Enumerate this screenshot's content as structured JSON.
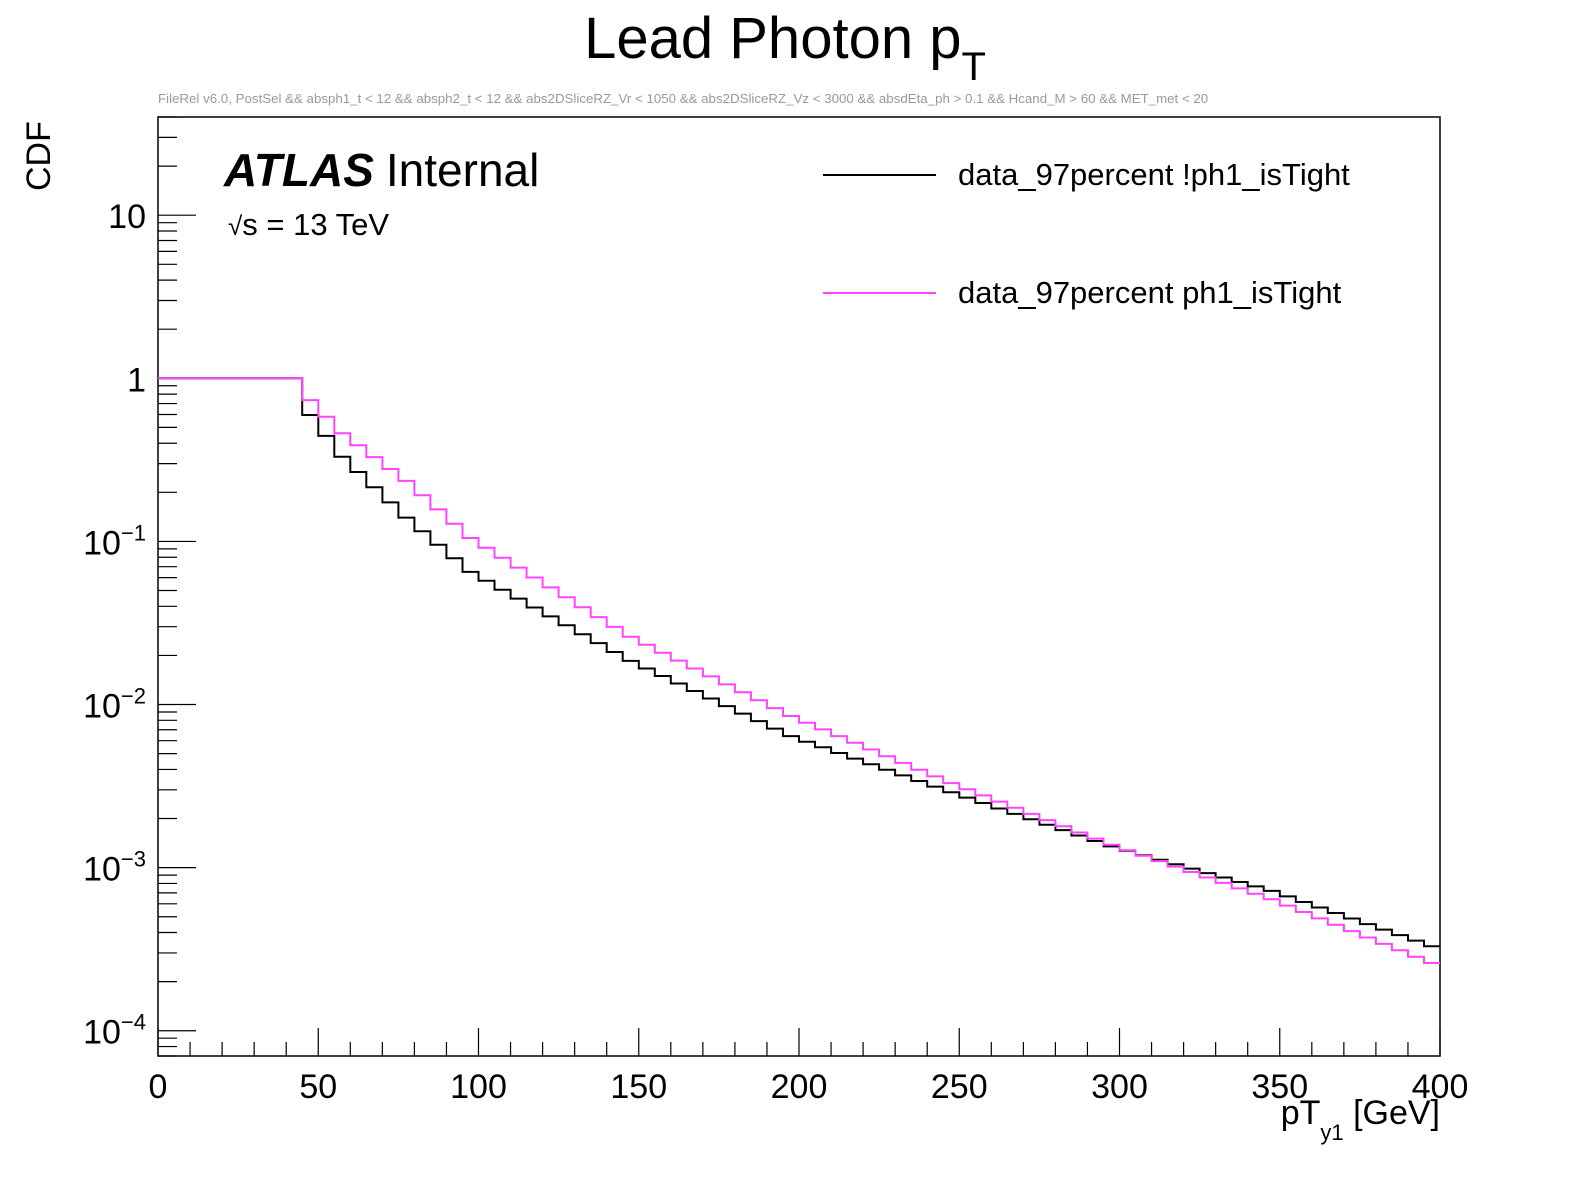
{
  "chart_data": {
    "type": "line",
    "step": true,
    "title": "Lead Photon p",
    "title_subscript": "T",
    "subtitle": "FileRel v6.0, PostSel &&  absph1_t < 12 && absph2_t < 12 && abs2DSliceRZ_Vr < 1050 && abs2DSliceRZ_Vz < 3000 && absdEta_ph > 0.1 && Hcand_M > 60 && MET_met < 20",
    "xlabel": "pT",
    "xlabel_subscript": "y1",
    "xlabel_unit": " [GeV]",
    "ylabel": "CDF",
    "xlim": [
      0,
      400
    ],
    "ylim": [
      7e-05,
      40
    ],
    "yscale": "log",
    "x_ticks": [
      0,
      50,
      100,
      150,
      200,
      250,
      300,
      350,
      400
    ],
    "x_tick_labels": [
      "0",
      "50",
      "100",
      "150",
      "200",
      "250",
      "300",
      "350",
      "400"
    ],
    "y_ticks": [
      {
        "value": 10,
        "base": "10",
        "exp": ""
      },
      {
        "value": 1,
        "base": "1",
        "exp": ""
      },
      {
        "value": 0.1,
        "base": "10",
        "exp": "−1"
      },
      {
        "value": 0.01,
        "base": "10",
        "exp": "−2"
      },
      {
        "value": 0.001,
        "base": "10",
        "exp": "−3"
      },
      {
        "value": 0.0001,
        "base": "10",
        "exp": "−4"
      }
    ],
    "bin_width": 5,
    "annotation": {
      "experiment": "ATLAS",
      "status": "Internal",
      "sqrt_symbol": "√",
      "energy_text": "s = 13 TeV"
    },
    "legend_position": "top-right",
    "series": [
      {
        "name": "data_97percent !ph1_isTight",
        "color": "#000000",
        "plateau_end": 45,
        "knots": [
          [
            45,
            0.8
          ],
          [
            60,
            0.33
          ],
          [
            80,
            0.14
          ],
          [
            100,
            0.065
          ],
          [
            150,
            0.0185
          ],
          [
            200,
            0.0064
          ],
          [
            250,
            0.0029
          ],
          [
            300,
            0.00135
          ],
          [
            350,
            0.00072
          ],
          [
            400,
            0.00033
          ]
        ]
      },
      {
        "name": "data_97percent ph1_isTight",
        "color": "#ff44ff",
        "plateau_end": 45,
        "knots": [
          [
            45,
            0.93
          ],
          [
            60,
            0.46
          ],
          [
            80,
            0.235
          ],
          [
            100,
            0.105
          ],
          [
            150,
            0.026
          ],
          [
            200,
            0.0085
          ],
          [
            250,
            0.0033
          ],
          [
            300,
            0.00138
          ],
          [
            350,
            0.00064
          ],
          [
            400,
            0.00026
          ]
        ]
      }
    ]
  }
}
